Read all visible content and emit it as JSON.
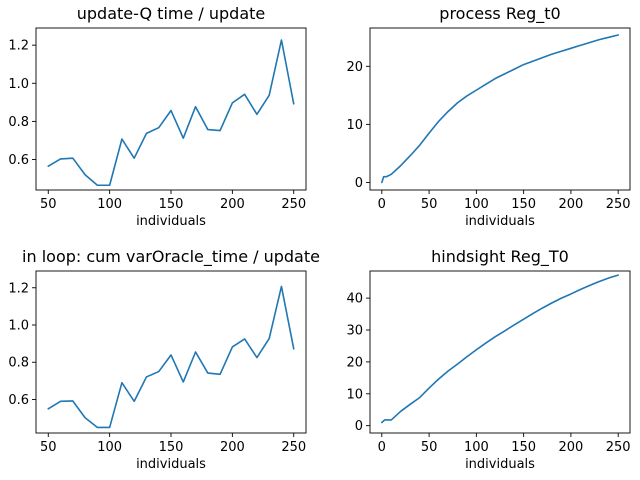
{
  "chart_data": [
    {
      "type": "line",
      "title": "update-Q time / update",
      "xlabel": "individuals",
      "ylabel": "",
      "color": "#1f77b4",
      "xlim": [
        40,
        260
      ],
      "ylim": [
        0.44,
        1.29
      ],
      "xticks": [
        50,
        100,
        150,
        200,
        250
      ],
      "yticks": [
        0.6,
        0.8,
        1.0,
        1.2
      ],
      "ytick_format": 1,
      "x": [
        50,
        60,
        70,
        80,
        90,
        100,
        110,
        120,
        130,
        140,
        150,
        160,
        170,
        180,
        190,
        200,
        210,
        220,
        230,
        240,
        250
      ],
      "y": [
        0.565,
        0.603,
        0.607,
        0.52,
        0.465,
        0.465,
        0.707,
        0.607,
        0.737,
        0.767,
        0.857,
        0.712,
        0.877,
        0.757,
        0.752,
        0.897,
        0.942,
        0.837,
        0.937,
        1.227,
        0.892
      ]
    },
    {
      "type": "line",
      "title": "process Reg_t0",
      "xlabel": "individuals",
      "ylabel": "",
      "color": "#1f77b4",
      "xlim": [
        -12.5,
        262.5
      ],
      "ylim": [
        -1.3,
        26.6
      ],
      "xticks": [
        0,
        50,
        100,
        150,
        200,
        250
      ],
      "yticks": [
        0,
        10,
        20
      ],
      "ytick_format": 0,
      "x": [
        0,
        2,
        5,
        10,
        20,
        30,
        40,
        50,
        60,
        70,
        80,
        90,
        100,
        110,
        120,
        130,
        140,
        150,
        160,
        170,
        180,
        190,
        200,
        210,
        220,
        230,
        240,
        250
      ],
      "y": [
        0.0,
        1.0,
        1.0,
        1.4,
        2.9,
        4.6,
        6.4,
        8.5,
        10.5,
        12.2,
        13.7,
        14.9,
        15.9,
        16.9,
        17.9,
        18.7,
        19.5,
        20.3,
        20.9,
        21.5,
        22.1,
        22.6,
        23.1,
        23.6,
        24.1,
        24.6,
        25.0,
        25.4
      ]
    },
    {
      "type": "line",
      "title": "in loop: cum varOracle_time / update",
      "xlabel": "individuals",
      "ylabel": "",
      "color": "#1f77b4",
      "xlim": [
        40,
        260
      ],
      "ylim": [
        0.42,
        1.29
      ],
      "xticks": [
        50,
        100,
        150,
        200,
        250
      ],
      "yticks": [
        0.6,
        0.8,
        1.0,
        1.2
      ],
      "ytick_format": 1,
      "x": [
        50,
        60,
        70,
        80,
        90,
        100,
        110,
        120,
        130,
        140,
        150,
        160,
        170,
        180,
        190,
        200,
        210,
        220,
        230,
        240,
        250
      ],
      "y": [
        0.55,
        0.59,
        0.592,
        0.502,
        0.45,
        0.45,
        0.69,
        0.59,
        0.721,
        0.75,
        0.839,
        0.694,
        0.855,
        0.742,
        0.735,
        0.882,
        0.925,
        0.825,
        0.927,
        1.207,
        0.872
      ]
    },
    {
      "type": "line",
      "title": "hindsight Reg_T0",
      "xlabel": "individuals",
      "ylabel": "",
      "color": "#1f77b4",
      "xlim": [
        -12.5,
        262.5
      ],
      "ylim": [
        -2.3,
        48.5
      ],
      "xticks": [
        0,
        50,
        100,
        150,
        200,
        250
      ],
      "yticks": [
        0,
        10,
        20,
        30,
        40
      ],
      "ytick_format": 0,
      "x": [
        0,
        3,
        5,
        10,
        20,
        30,
        40,
        50,
        60,
        70,
        80,
        90,
        100,
        110,
        120,
        130,
        140,
        150,
        160,
        170,
        180,
        190,
        200,
        210,
        220,
        230,
        240,
        250
      ],
      "y": [
        1.0,
        1.8,
        1.8,
        1.8,
        4.5,
        6.7,
        8.8,
        11.8,
        14.6,
        17.1,
        19.3,
        21.6,
        23.8,
        25.9,
        27.9,
        29.7,
        31.6,
        33.4,
        35.2,
        36.9,
        38.5,
        40.0,
        41.3,
        42.7,
        44.0,
        45.2,
        46.3,
        47.2
      ]
    }
  ]
}
